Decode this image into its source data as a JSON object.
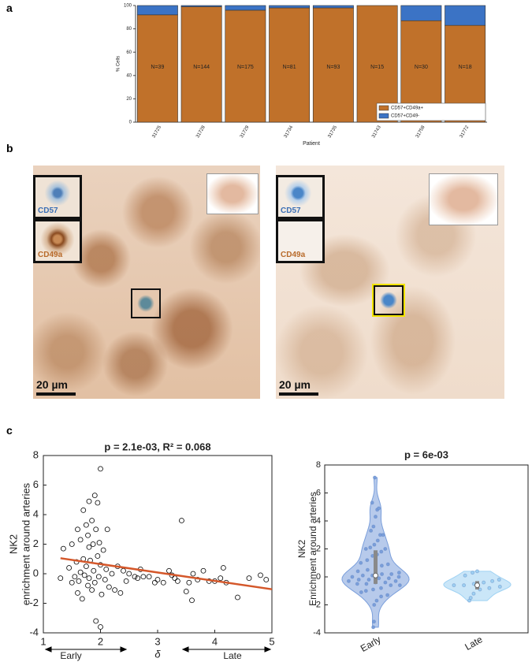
{
  "panel_labels": [
    "a",
    "b",
    "c"
  ],
  "panel_b": {
    "images": [
      {
        "insets": [
          "CD57",
          "CD49a"
        ],
        "scale_bar": "20 µm"
      },
      {
        "insets": [
          "CD57",
          "CD49a"
        ],
        "scale_bar": "20 µm"
      }
    ]
  },
  "chart_data": [
    {
      "type": "stacked_bar",
      "ylabel": "% Cells",
      "xlabel": "Patient",
      "categories": [
        "31725",
        "31728",
        "31729",
        "31734",
        "31735",
        "31743",
        "31758",
        "31772"
      ],
      "series": [
        {
          "name": "CD57+CD49a+",
          "color": "#c0712a",
          "values": [
            92,
            99,
            96,
            98,
            98,
            100,
            87,
            83
          ]
        },
        {
          "name": "CD57+CD49-",
          "color": "#3b73c5",
          "values": [
            8,
            1,
            4,
            2,
            2,
            0,
            13,
            17
          ]
        }
      ],
      "annotations": [
        "N=39",
        "N=144",
        "N=175",
        "N=81",
        "N=93",
        "N=15",
        "N=30",
        "N=18"
      ],
      "ylim": [
        0,
        100
      ],
      "yticks": [
        0,
        20,
        40,
        60,
        80,
        100
      ],
      "legend": "lower right"
    },
    {
      "type": "scatter",
      "title": "p = 2.1e-03, R² = 0.068",
      "ylabel": [
        "NK2",
        "enrichment around arteries"
      ],
      "xlabel": "δ",
      "x_annotations": [
        "Early",
        "Late"
      ],
      "x": [
        1.3,
        1.35,
        1.45,
        1.5,
        1.5,
        1.55,
        1.58,
        1.6,
        1.6,
        1.62,
        1.65,
        1.65,
        1.68,
        1.7,
        1.7,
        1.72,
        1.75,
        1.75,
        1.78,
        1.78,
        1.8,
        1.8,
        1.8,
        1.82,
        1.85,
        1.85,
        1.87,
        1.88,
        1.9,
        1.9,
        1.92,
        1.92,
        1.95,
        1.95,
        1.97,
        1.98,
        2.0,
        2.0,
        2.0,
        2.02,
        2.05,
        2.08,
        2.1,
        2.12,
        2.15,
        2.2,
        2.25,
        2.3,
        2.35,
        2.4,
        2.45,
        2.5,
        2.6,
        2.65,
        2.7,
        2.75,
        2.85,
        2.95,
        3.0,
        3.1,
        3.2,
        3.25,
        3.3,
        3.35,
        3.42,
        3.5,
        3.55,
        3.6,
        3.62,
        3.7,
        3.8,
        3.9,
        4.0,
        4.1,
        4.15,
        4.2,
        4.4,
        4.6,
        4.8,
        4.9
      ],
      "y": [
        -0.3,
        1.7,
        0.4,
        -0.6,
        2.0,
        -0.2,
        0.8,
        -1.3,
        3.0,
        -0.5,
        0.1,
        2.3,
        -1.7,
        4.3,
        1.0,
        -0.1,
        3.3,
        0.5,
        -0.8,
        2.6,
        4.9,
        1.8,
        -0.3,
        0.9,
        3.6,
        -1.1,
        2.0,
        0.2,
        5.3,
        -0.6,
        3.0,
        -3.2,
        4.8,
        1.2,
        -0.2,
        2.1,
        7.1,
        -3.6,
        0.6,
        -1.4,
        1.6,
        -0.4,
        0.3,
        3.0,
        -0.9,
        0.0,
        -1.1,
        0.5,
        -1.3,
        0.2,
        -0.5,
        0.0,
        -0.2,
        -0.3,
        0.3,
        -0.2,
        -0.2,
        -0.6,
        -0.4,
        -0.6,
        0.2,
        -0.1,
        -0.3,
        -0.5,
        3.6,
        -1.2,
        -0.6,
        -1.8,
        0.0,
        -0.4,
        0.2,
        -0.5,
        -0.5,
        -0.3,
        0.4,
        -0.6,
        -1.6,
        -0.3,
        -0.1,
        -0.4
      ],
      "marker_color": "#000000",
      "fit": {
        "x": [
          1.3,
          5
        ],
        "y": [
          1.05,
          -1.05
        ],
        "color": "#d4572a"
      },
      "xlim": [
        1,
        5
      ],
      "xticks": [
        1,
        2,
        3,
        4,
        5
      ],
      "ylim": [
        -4,
        8
      ],
      "yticks": [
        -4,
        -2,
        0,
        2,
        4,
        6,
        8
      ]
    },
    {
      "type": "violin",
      "title": "p  = 6e-03",
      "ylabel": [
        "NK2",
        "Enrichment around arteries"
      ],
      "categories": [
        "Early",
        "Late"
      ],
      "colors": [
        "#7b9fdb",
        "#9fd2f3"
      ],
      "values": [
        [
          -3.6,
          -3.2,
          -2.0,
          -1.7,
          -1.4,
          -1.3,
          -1.1,
          -1.0,
          -0.9,
          -0.8,
          -0.6,
          -0.6,
          -0.5,
          -0.5,
          -0.4,
          -0.4,
          -0.3,
          -0.3,
          -0.2,
          -0.2,
          -0.1,
          -0.1,
          0.0,
          0.0,
          0.1,
          0.1,
          0.2,
          0.2,
          0.3,
          0.4,
          0.5,
          0.6,
          0.8,
          0.9,
          1.0,
          1.2,
          1.5,
          1.6,
          1.8,
          2.0,
          2.0,
          2.1,
          2.3,
          2.6,
          3.0,
          3.0,
          3.3,
          3.6,
          4.3,
          4.8,
          4.9,
          5.3,
          7.1
        ],
        [
          -1.7,
          -1.5,
          -1.2,
          -0.9,
          -0.8,
          -0.7,
          -0.6,
          -0.6,
          -0.5,
          -0.4,
          -0.3,
          -0.2,
          0.1,
          0.3,
          0.4
        ]
      ],
      "median": [
        0.1,
        -0.6
      ],
      "q1": [
        -0.5,
        -0.9
      ],
      "q3": [
        1.9,
        -0.3
      ],
      "ylim": [
        -4,
        8
      ],
      "yticks": [
        -4,
        -2,
        0,
        2,
        4,
        6,
        8
      ]
    }
  ]
}
